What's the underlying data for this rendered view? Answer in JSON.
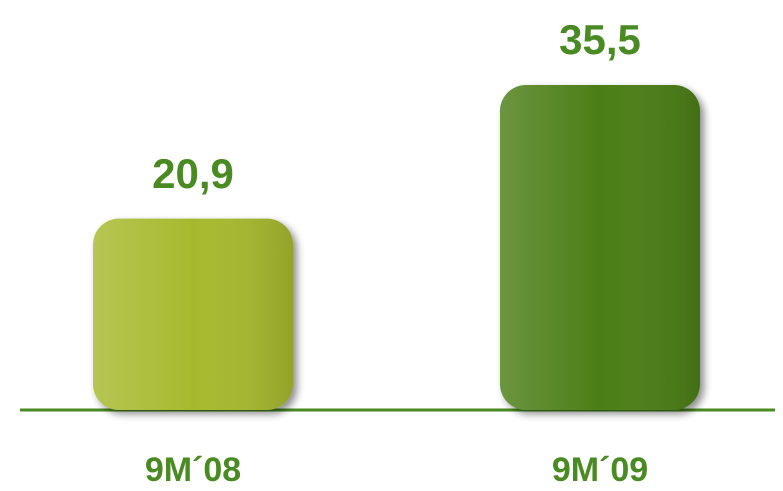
{
  "chart_data": {
    "type": "bar",
    "categories": [
      "9M´08",
      "9M´09"
    ],
    "values": [
      20.9,
      35.5
    ],
    "value_labels": [
      "20,9",
      "35,5"
    ],
    "colors": [
      "#a6b92e",
      "#4b7e17"
    ]
  }
}
